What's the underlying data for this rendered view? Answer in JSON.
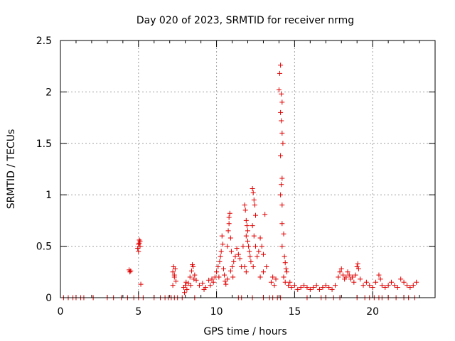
{
  "chart_data": {
    "type": "scatter",
    "title": "Day 020 of 2023, SRMTID for receiver nrmg",
    "xlabel": "GPS time / hours",
    "ylabel": "SRMTID / TECUs",
    "xlim": [
      0,
      24
    ],
    "ylim": [
      0,
      2.5
    ],
    "xticks": [
      0,
      5,
      10,
      15,
      20
    ],
    "xtick_labels": [
      "0",
      "5",
      "10",
      "15",
      "20"
    ],
    "yticks": [
      0,
      0.5,
      1,
      1.5,
      2,
      2.5
    ],
    "ytick_labels": [
      "0",
      "0.5",
      "1",
      "1.5",
      "2",
      "2.5"
    ],
    "grid": true,
    "marker": "+",
    "color": "#e00000",
    "series": [
      {
        "name": "SRMTID",
        "points": [
          [
            0.2,
            0.0
          ],
          [
            0.5,
            0.0
          ],
          [
            0.8,
            0.0
          ],
          [
            1.0,
            0.0
          ],
          [
            1.3,
            0.0
          ],
          [
            1.5,
            0.0
          ],
          [
            2.1,
            0.0
          ],
          [
            3.0,
            0.0
          ],
          [
            3.4,
            0.0
          ],
          [
            3.9,
            0.0
          ],
          [
            4.3,
            0.0
          ],
          [
            4.7,
            0.0
          ],
          [
            5.0,
            0.0
          ],
          [
            5.3,
            0.0
          ],
          [
            6.0,
            0.0
          ],
          [
            6.4,
            0.0
          ],
          [
            6.7,
            0.0
          ],
          [
            6.9,
            0.0
          ],
          [
            7.1,
            0.0
          ],
          [
            7.3,
            0.0
          ],
          [
            7.5,
            0.0
          ],
          [
            7.8,
            0.0
          ],
          [
            8.6,
            0.0
          ],
          [
            11.4,
            0.0
          ],
          [
            11.6,
            0.0
          ],
          [
            12.3,
            0.0
          ],
          [
            13.0,
            0.0
          ],
          [
            13.4,
            0.0
          ],
          [
            13.6,
            0.0
          ],
          [
            13.9,
            0.0
          ],
          [
            14.1,
            0.0
          ],
          [
            15.8,
            0.0
          ],
          [
            16.7,
            0.0
          ],
          [
            17.0,
            0.0
          ],
          [
            17.5,
            0.0
          ],
          [
            17.9,
            0.0
          ],
          [
            19.0,
            0.0
          ],
          [
            19.5,
            0.0
          ],
          [
            19.8,
            0.0
          ],
          [
            20.1,
            0.0
          ],
          [
            20.4,
            0.0
          ],
          [
            20.6,
            0.0
          ],
          [
            21.0,
            0.0
          ],
          [
            21.5,
            0.0
          ],
          [
            22.0,
            0.0
          ],
          [
            22.3,
            0.0
          ],
          [
            22.7,
            0.0
          ],
          [
            4.4,
            0.27
          ],
          [
            4.45,
            0.25
          ],
          [
            4.5,
            0.26
          ],
          [
            4.95,
            0.48
          ],
          [
            5.0,
            0.52
          ],
          [
            5.05,
            0.56
          ],
          [
            5.1,
            0.5
          ],
          [
            5.0,
            0.45
          ],
          [
            5.05,
            0.53
          ],
          [
            5.1,
            0.55
          ],
          [
            5.15,
            0.13
          ],
          [
            7.2,
            0.25
          ],
          [
            7.25,
            0.3
          ],
          [
            7.3,
            0.2
          ],
          [
            7.35,
            0.28
          ],
          [
            7.4,
            0.16
          ],
          [
            7.3,
            0.22
          ],
          [
            7.2,
            0.12
          ],
          [
            7.9,
            0.1
          ],
          [
            8.0,
            0.12
          ],
          [
            8.1,
            0.08
          ],
          [
            8.2,
            0.14
          ],
          [
            8.3,
            0.2
          ],
          [
            8.4,
            0.26
          ],
          [
            8.5,
            0.3
          ],
          [
            8.6,
            0.22
          ],
          [
            8.7,
            0.17
          ],
          [
            8.45,
            0.32
          ],
          [
            8.55,
            0.18
          ],
          [
            7.95,
            0.05
          ],
          [
            8.05,
            0.15
          ],
          [
            8.35,
            0.12
          ],
          [
            8.9,
            0.12
          ],
          [
            9.1,
            0.14
          ],
          [
            9.3,
            0.1
          ],
          [
            9.5,
            0.17
          ],
          [
            9.7,
            0.18
          ],
          [
            9.9,
            0.2
          ],
          [
            10.0,
            0.25
          ],
          [
            10.1,
            0.3
          ],
          [
            10.2,
            0.35
          ],
          [
            10.25,
            0.4
          ],
          [
            10.3,
            0.45
          ],
          [
            10.35,
            0.6
          ],
          [
            10.4,
            0.52
          ],
          [
            10.45,
            0.28
          ],
          [
            10.5,
            0.22
          ],
          [
            10.55,
            0.16
          ],
          [
            10.6,
            0.13
          ],
          [
            9.2,
            0.08
          ],
          [
            9.6,
            0.12
          ],
          [
            9.8,
            0.15
          ],
          [
            10.15,
            0.2
          ],
          [
            10.7,
            0.5
          ],
          [
            10.75,
            0.65
          ],
          [
            10.8,
            0.78
          ],
          [
            10.85,
            0.82
          ],
          [
            10.8,
            0.72
          ],
          [
            10.9,
            0.58
          ],
          [
            10.95,
            0.45
          ],
          [
            11.0,
            0.3
          ],
          [
            10.9,
            0.26
          ],
          [
            11.05,
            0.2
          ],
          [
            10.7,
            0.18
          ],
          [
            11.1,
            0.35
          ],
          [
            11.2,
            0.4
          ],
          [
            11.3,
            0.48
          ],
          [
            11.4,
            0.42
          ],
          [
            11.5,
            0.38
          ],
          [
            11.6,
            0.3
          ],
          [
            11.7,
            0.5
          ],
          [
            11.8,
            0.9
          ],
          [
            11.85,
            0.85
          ],
          [
            11.9,
            0.75
          ],
          [
            11.95,
            0.7
          ],
          [
            12.0,
            0.65
          ],
          [
            12.05,
            0.5
          ],
          [
            12.1,
            0.45
          ],
          [
            12.15,
            0.4
          ],
          [
            12.2,
            0.35
          ],
          [
            11.9,
            0.6
          ],
          [
            12.0,
            0.55
          ],
          [
            11.8,
            0.3
          ],
          [
            11.9,
            0.25
          ],
          [
            12.3,
            1.06
          ],
          [
            12.35,
            1.02
          ],
          [
            12.4,
            0.95
          ],
          [
            12.45,
            0.9
          ],
          [
            12.5,
            0.8
          ],
          [
            12.3,
            0.7
          ],
          [
            12.4,
            0.6
          ],
          [
            12.5,
            0.5
          ],
          [
            12.6,
            0.4
          ],
          [
            12.35,
            0.3
          ],
          [
            12.7,
            0.45
          ],
          [
            12.8,
            0.58
          ],
          [
            12.9,
            0.5
          ],
          [
            13.0,
            0.42
          ],
          [
            13.1,
            0.81
          ],
          [
            13.2,
            0.3
          ],
          [
            13.0,
            0.25
          ],
          [
            12.8,
            0.2
          ],
          [
            13.5,
            0.15
          ],
          [
            13.6,
            0.2
          ],
          [
            13.7,
            0.12
          ],
          [
            13.8,
            0.18
          ],
          [
            14.0,
            2.02
          ],
          [
            14.05,
            2.18
          ],
          [
            14.1,
            2.26
          ],
          [
            14.15,
            1.98
          ],
          [
            14.2,
            1.9
          ],
          [
            14.1,
            1.8
          ],
          [
            14.15,
            1.72
          ],
          [
            14.2,
            1.6
          ],
          [
            14.25,
            1.5
          ],
          [
            14.1,
            1.38
          ],
          [
            14.2,
            1.16
          ],
          [
            14.15,
            1.1
          ],
          [
            14.1,
            1.0
          ],
          [
            14.2,
            0.9
          ],
          [
            14.2,
            0.72
          ],
          [
            14.3,
            0.62
          ],
          [
            14.2,
            0.5
          ],
          [
            14.35,
            0.4
          ],
          [
            14.4,
            0.34
          ],
          [
            14.45,
            0.28
          ],
          [
            14.5,
            0.25
          ],
          [
            14.3,
            0.2
          ],
          [
            14.4,
            0.15
          ],
          [
            14.6,
            0.12
          ],
          [
            14.7,
            0.15
          ],
          [
            14.8,
            0.1
          ],
          [
            15.0,
            0.12
          ],
          [
            15.2,
            0.08
          ],
          [
            15.4,
            0.1
          ],
          [
            15.6,
            0.12
          ],
          [
            15.8,
            0.1
          ],
          [
            16.0,
            0.08
          ],
          [
            16.2,
            0.1
          ],
          [
            16.4,
            0.12
          ],
          [
            16.6,
            0.08
          ],
          [
            16.8,
            0.1
          ],
          [
            17.0,
            0.12
          ],
          [
            17.2,
            0.1
          ],
          [
            17.4,
            0.08
          ],
          [
            17.6,
            0.12
          ],
          [
            17.8,
            0.2
          ],
          [
            17.9,
            0.25
          ],
          [
            18.0,
            0.28
          ],
          [
            18.1,
            0.22
          ],
          [
            18.2,
            0.18
          ],
          [
            18.3,
            0.2
          ],
          [
            18.4,
            0.25
          ],
          [
            18.5,
            0.22
          ],
          [
            18.6,
            0.18
          ],
          [
            18.7,
            0.2
          ],
          [
            18.8,
            0.15
          ],
          [
            18.9,
            0.22
          ],
          [
            19.0,
            0.3
          ],
          [
            19.05,
            0.33
          ],
          [
            19.1,
            0.28
          ],
          [
            19.2,
            0.18
          ],
          [
            19.4,
            0.12
          ],
          [
            19.6,
            0.15
          ],
          [
            19.8,
            0.12
          ],
          [
            20.0,
            0.1
          ],
          [
            20.2,
            0.15
          ],
          [
            20.4,
            0.22
          ],
          [
            20.5,
            0.18
          ],
          [
            20.6,
            0.12
          ],
          [
            20.8,
            0.1
          ],
          [
            21.0,
            0.12
          ],
          [
            21.2,
            0.15
          ],
          [
            21.4,
            0.12
          ],
          [
            21.6,
            0.1
          ],
          [
            21.8,
            0.18
          ],
          [
            22.0,
            0.15
          ],
          [
            22.2,
            0.12
          ],
          [
            22.4,
            0.1
          ],
          [
            22.6,
            0.12
          ],
          [
            22.8,
            0.15
          ]
        ]
      }
    ]
  }
}
